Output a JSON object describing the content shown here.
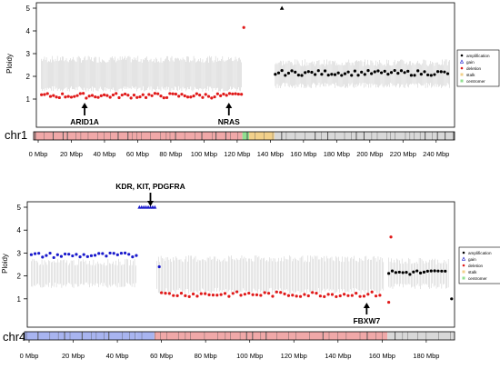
{
  "colors": {
    "amplification": "#000000",
    "gain": "#1a1acc",
    "deletion": "#e01a1a",
    "stalk": "#f2d08a",
    "centromer": "#90e090",
    "gray_line": "#c8c8c8",
    "band_chr1": "#f0a8a8",
    "band_chr4_a": "#a8b4f0",
    "band_chr4_b": "#f0a8a8",
    "band_gray": "#d8d8d8"
  },
  "legend": [
    {
      "label": "amplification",
      "shape": "dot",
      "color": "#000000"
    },
    {
      "label": "gain",
      "shape": "triangle",
      "color": "#1a1acc"
    },
    {
      "label": "deletion",
      "shape": "dot",
      "color": "#e01a1a"
    },
    {
      "label": "stalk",
      "shape": "square",
      "color": "#f2d08a"
    },
    {
      "label": "centromer",
      "shape": "square",
      "color": "#90e090"
    }
  ],
  "chart_data": [
    {
      "type": "scatter",
      "ylabel": "Ploidy",
      "chromosome_label": "chr1",
      "ylim": [
        0,
        5
      ],
      "yticks": [
        1,
        2,
        3,
        4,
        5
      ],
      "xlim": [
        0,
        250
      ],
      "xticks": [
        0,
        20,
        40,
        60,
        80,
        100,
        120,
        140,
        160,
        180,
        200,
        220,
        240
      ],
      "xtick_labels": [
        "0 Mbp",
        "20 Mbp",
        "40 Mbp",
        "60 Mbp",
        "80 Mbp",
        "100 Mbp",
        "120 Mbp",
        "140 Mbp",
        "160 Mbp",
        "180 Mbp",
        "200 Mbp",
        "220 Mbp",
        "240 Mbp"
      ],
      "annotations": [
        {
          "text": "ARID1A",
          "x": 28
        },
        {
          "text": "NRAS",
          "x": 115
        }
      ],
      "series": [
        {
          "name": "deletion",
          "segments": [
            {
              "x_start": 2,
              "x_end": 123,
              "y": 1.15,
              "step": 1.8
            }
          ],
          "outliers": [
            {
              "x": 124,
              "y": 4.15
            }
          ]
        },
        {
          "name": "amplification",
          "segments": [
            {
              "x_start": 143,
              "x_end": 248,
              "y": 2.15,
              "step": 2
            }
          ],
          "outliers": [
            {
              "x": 147,
              "y": 5.0,
              "shape": "triangle"
            }
          ]
        }
      ],
      "noise_bands": [
        {
          "x_start": 2,
          "x_end": 123,
          "y_low": 1.45,
          "y_high": 2.75
        },
        {
          "x_start": 143,
          "x_end": 248,
          "y_low": 1.6,
          "y_high": 2.6
        }
      ],
      "ideogram": [
        {
          "start": 0,
          "end": 124,
          "color": "#f0a8a8"
        },
        {
          "start": 124,
          "end": 128,
          "color": "#90e090"
        },
        {
          "start": 128,
          "end": 143,
          "color": "#f2d08a"
        },
        {
          "start": 143,
          "end": 250,
          "color": "#d8d8d8"
        }
      ]
    },
    {
      "type": "scatter",
      "ylabel": "Ploidy",
      "chromosome_label": "chr4",
      "ylim": [
        0,
        5
      ],
      "yticks": [
        1,
        2,
        3,
        4,
        5
      ],
      "xlim": [
        0,
        192
      ],
      "xticks": [
        0,
        20,
        40,
        60,
        80,
        100,
        120,
        140,
        160,
        180
      ],
      "xtick_labels": [
        "0 Mbp",
        "20 Mbp",
        "40 Mbp",
        "60 Mbp",
        "80 Mbp",
        "100 Mbp",
        "120 Mbp",
        "140 Mbp",
        "160 Mbp",
        "180 Mbp"
      ],
      "annotations": [
        {
          "text": "KDR, KIT, PDGFRA",
          "x": 55
        },
        {
          "text": "FBXW7",
          "x": 153
        }
      ],
      "series": [
        {
          "name": "gain",
          "segments": [
            {
              "x_start": 1,
              "x_end": 49,
              "y": 2.9,
              "step": 1.7
            },
            {
              "x_start": 50,
              "x_end": 57,
              "y": 5.0,
              "step": 1,
              "shape": "triangle"
            }
          ],
          "outliers": [
            {
              "x": 59,
              "y": 2.4
            }
          ]
        },
        {
          "name": "deletion",
          "segments": [
            {
              "x_start": 60,
              "x_end": 160,
              "y": 1.2,
              "step": 1.8
            }
          ],
          "outliers": [
            {
              "x": 163,
              "y": 0.85
            },
            {
              "x": 164,
              "y": 3.7
            }
          ]
        },
        {
          "name": "amplification",
          "segments": [
            {
              "x_start": 163,
              "x_end": 190,
              "y": 2.15,
              "step": 1.6
            }
          ],
          "outliers": [
            {
              "x": 191.5,
              "y": 1.0
            }
          ]
        }
      ],
      "noise_bands": [
        {
          "x_start": 1,
          "x_end": 49,
          "y_low": 1.6,
          "y_high": 2.6
        },
        {
          "x_start": 58,
          "x_end": 161,
          "y_low": 1.35,
          "y_high": 2.75
        },
        {
          "x_start": 163,
          "x_end": 190,
          "y_low": 1.55,
          "y_high": 2.65
        }
      ],
      "ideogram": [
        {
          "start": 0,
          "end": 50,
          "color": "#a8b4f0"
        },
        {
          "start": 50,
          "end": 58,
          "color": "#a8b4f0"
        },
        {
          "start": 58,
          "end": 162,
          "color": "#f0a8a8"
        },
        {
          "start": 162,
          "end": 192,
          "color": "#d8d8d8"
        }
      ]
    }
  ]
}
